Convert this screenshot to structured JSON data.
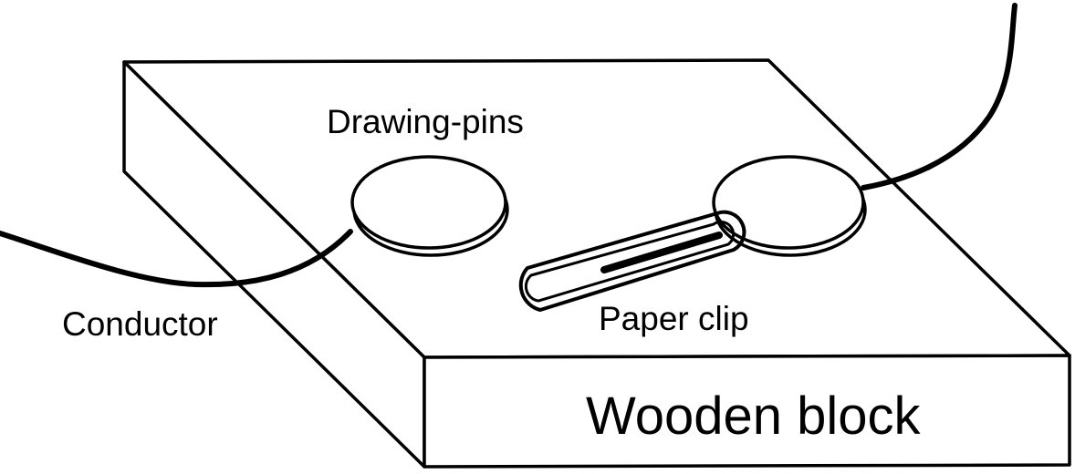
{
  "labels": {
    "drawing_pins": "Drawing-pins",
    "conductor": "Conductor",
    "paper_clip": "Paper clip",
    "wooden_block": "Wooden block"
  },
  "colors": {
    "ink": "#000000",
    "paper": "#ffffff"
  }
}
